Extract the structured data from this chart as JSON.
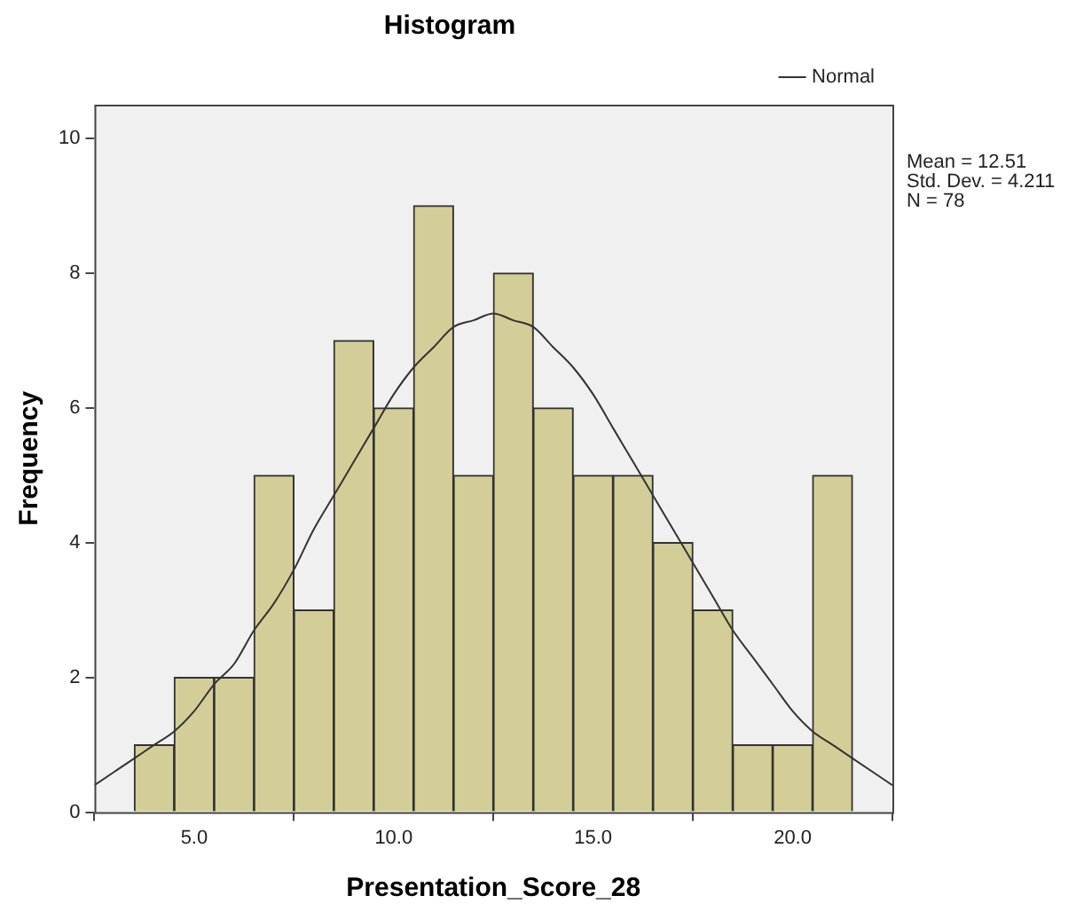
{
  "chart_data": {
    "type": "histogram",
    "title": "Histogram",
    "xlabel": "Presentation_Score_28",
    "ylabel": "Frequency",
    "bins": [
      3.5,
      4.5,
      5.5,
      6.5,
      7.5,
      8.5,
      9.5,
      10.5,
      11.5,
      12.5,
      13.5,
      14.5,
      15.5,
      16.5,
      17.5,
      18.5,
      19.5,
      20.5,
      21.5
    ],
    "values": [
      1,
      2,
      2,
      5,
      3,
      7,
      6,
      9,
      5,
      8,
      6,
      5,
      5,
      4,
      3,
      1,
      1,
      5
    ],
    "color": "#d3ce97",
    "series": [
      {
        "type": "line",
        "name": "Normal",
        "color": "#333333",
        "x": [
          2.5,
          3,
          3.5,
          4,
          4.5,
          5,
          5.5,
          6,
          6.5,
          7,
          7.5,
          8,
          8.5,
          9,
          9.5,
          10,
          10.5,
          11,
          11.5,
          12,
          12.5,
          13,
          13.5,
          14,
          14.5,
          15,
          15.5,
          16,
          16.5,
          17,
          17.5,
          18,
          18.5,
          19,
          19.5,
          20,
          20.5,
          21,
          21.5,
          22,
          22.5
        ],
        "values": [
          0.4,
          0.6,
          0.8,
          1.0,
          1.2,
          1.5,
          1.9,
          2.2,
          2.7,
          3.1,
          3.6,
          4.2,
          4.7,
          5.2,
          5.7,
          6.2,
          6.6,
          6.9,
          7.2,
          7.3,
          7.4,
          7.3,
          7.2,
          6.9,
          6.6,
          6.2,
          5.7,
          5.2,
          4.7,
          4.2,
          3.7,
          3.2,
          2.7,
          2.3,
          1.9,
          1.5,
          1.2,
          1.0,
          0.8,
          0.6,
          0.4
        ]
      }
    ],
    "marker": "none",
    "line_style": "solid",
    "xlim": [
      2.5,
      22.5
    ],
    "xticks": [
      {
        "value": 5,
        "label": "5.0"
      },
      {
        "value": 10,
        "label": "10.0"
      },
      {
        "value": 15,
        "label": "15.0"
      },
      {
        "value": 20,
        "label": "20.0"
      }
    ],
    "ylim": [
      0,
      10.5
    ],
    "yticks": [
      0,
      2,
      4,
      6,
      8,
      10
    ],
    "grid": false,
    "legend": "top right",
    "annotations": [
      "Mean = 12.51",
      "Std. Dev. = 4.211",
      "N = 78"
    ]
  }
}
